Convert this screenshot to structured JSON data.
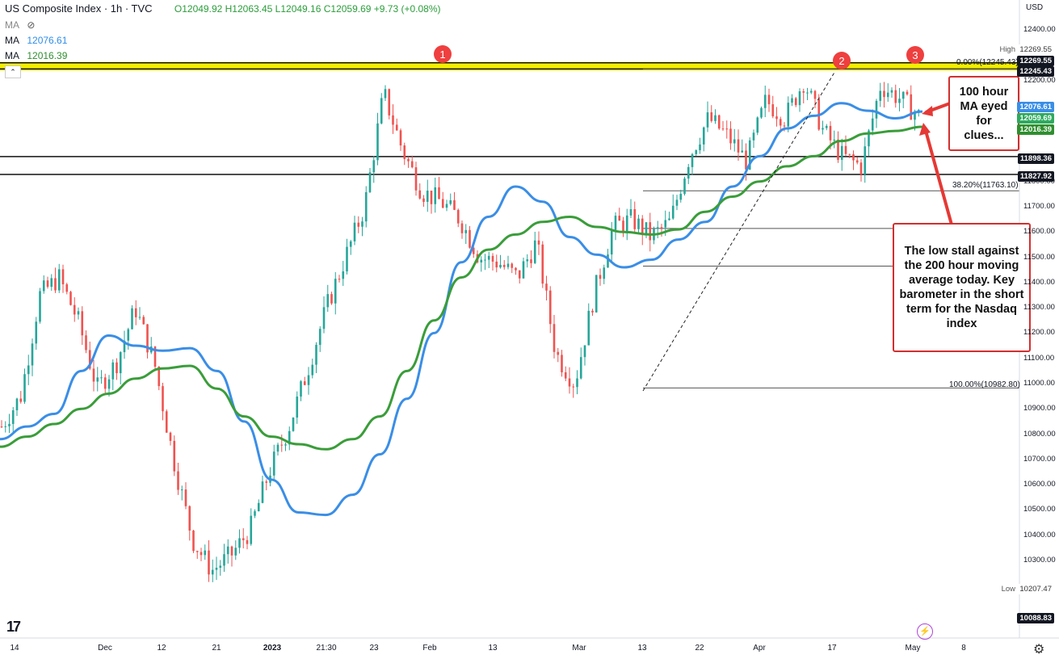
{
  "header": {
    "symbol": "US Composite Index · 1h · TVC",
    "ohlc": "O12049.92  H12063.45  L12049.16  C12059.69  +9.73 (+0.08%)",
    "ma1_label": "MA",
    "ma2_label": "MA",
    "ma2_value": "12076.61",
    "ma3_label": "MA",
    "ma3_value": "12016.39"
  },
  "currency": "USD",
  "colors": {
    "candle_up": "#26a69a",
    "candle_down": "#ef5350",
    "ma100": "#3a8ee6",
    "ma200": "#3a9d3a",
    "highlight": "#f2ee00",
    "annotation": "#d32f2f"
  },
  "annotations": {
    "box1": "100 hour MA eyed for clues...",
    "box2": "The low stall against the 200 hour moving average today.  Key barometer in the short term for the Nasdaq index"
  },
  "markers": [
    "1",
    "2",
    "3"
  ],
  "price_tags": {
    "high_label": "High",
    "high": "12269.55",
    "level_a": "12245.43",
    "ma100": "12076.61",
    "last": "12059.69",
    "ma200": "12016.39",
    "level_b": "11898.36",
    "level_c": "11827.92",
    "low_label": "Low",
    "low": "10207.47",
    "bottom": "10088.83"
  },
  "fib_labels": {
    "f0": "0.00%(12245.43)",
    "f382": "38.20%(11763.10)",
    "f100": "100.00%(10982.80)"
  },
  "chart_data": {
    "type": "line",
    "title": "US Composite Index · 1h · TVC",
    "x_tick_labels": [
      "14",
      "Dec",
      "12",
      "21",
      "2023",
      "21:30",
      "23",
      "Feb",
      "13",
      "Mar",
      "13",
      "22",
      "Apr",
      "17",
      "May",
      "8"
    ],
    "y_tick_labels": [
      "12400.00",
      "12200.00",
      "11800.00",
      "11700.00",
      "11600.00",
      "11500.00",
      "11400.00",
      "11300.00",
      "11200.00",
      "11100.00",
      "11000.00",
      "10900.00",
      "10800.00",
      "10700.00",
      "10600.00",
      "10500.00",
      "10400.00",
      "10300.00"
    ],
    "ylim": [
      10088.83,
      12450
    ],
    "horizontal_levels": [
      12269.55,
      12245.43,
      11898.36,
      11827.92
    ],
    "fib_levels": [
      {
        "label": "0.00%",
        "value": 12245.43
      },
      {
        "label": "38.20%",
        "value": 11763.1
      },
      {
        "label": "100.00%",
        "value": 10982.8
      }
    ],
    "series": [
      {
        "name": "MA",
        "last": 12076.61,
        "values": [
          10780,
          10830,
          10880,
          11050,
          11190,
          11150,
          11130,
          11140,
          11050,
          10850,
          10620,
          10490,
          10480,
          10560,
          10720,
          10940,
          11200,
          11480,
          11660,
          11780,
          11720,
          11580,
          11510,
          11460,
          11490,
          11570,
          11640,
          11780,
          11900,
          12010,
          12060,
          12110,
          12080,
          12050,
          12076.61
        ]
      },
      {
        "name": "MA",
        "last": 12016.39,
        "values": [
          10750,
          10790,
          10840,
          10900,
          10960,
          11020,
          11060,
          11070,
          10980,
          10870,
          10790,
          10760,
          10740,
          10780,
          10870,
          11050,
          11250,
          11420,
          11530,
          11590,
          11640,
          11660,
          11620,
          11600,
          11590,
          11610,
          11680,
          11740,
          11800,
          11860,
          11900,
          11960,
          11990,
          12000,
          12016.39
        ]
      }
    ],
    "candles_approx": [
      10830,
      10950,
      11350,
      11420,
      11250,
      10980,
      11080,
      11300,
      11080,
      10700,
      10380,
      10260,
      10320,
      10420,
      10650,
      10820,
      11050,
      11300,
      11500,
      11700,
      12150,
      11920,
      11760,
      11720,
      11650,
      11500,
      11480,
      11420,
      11560,
      11120,
      11000,
      11350,
      11620,
      11650,
      11580,
      11640,
      11900,
      12050,
      11980,
      11880,
      12120,
      12050,
      12200,
      12000,
      11900,
      11860,
      12180,
      12130,
      12060
    ]
  }
}
